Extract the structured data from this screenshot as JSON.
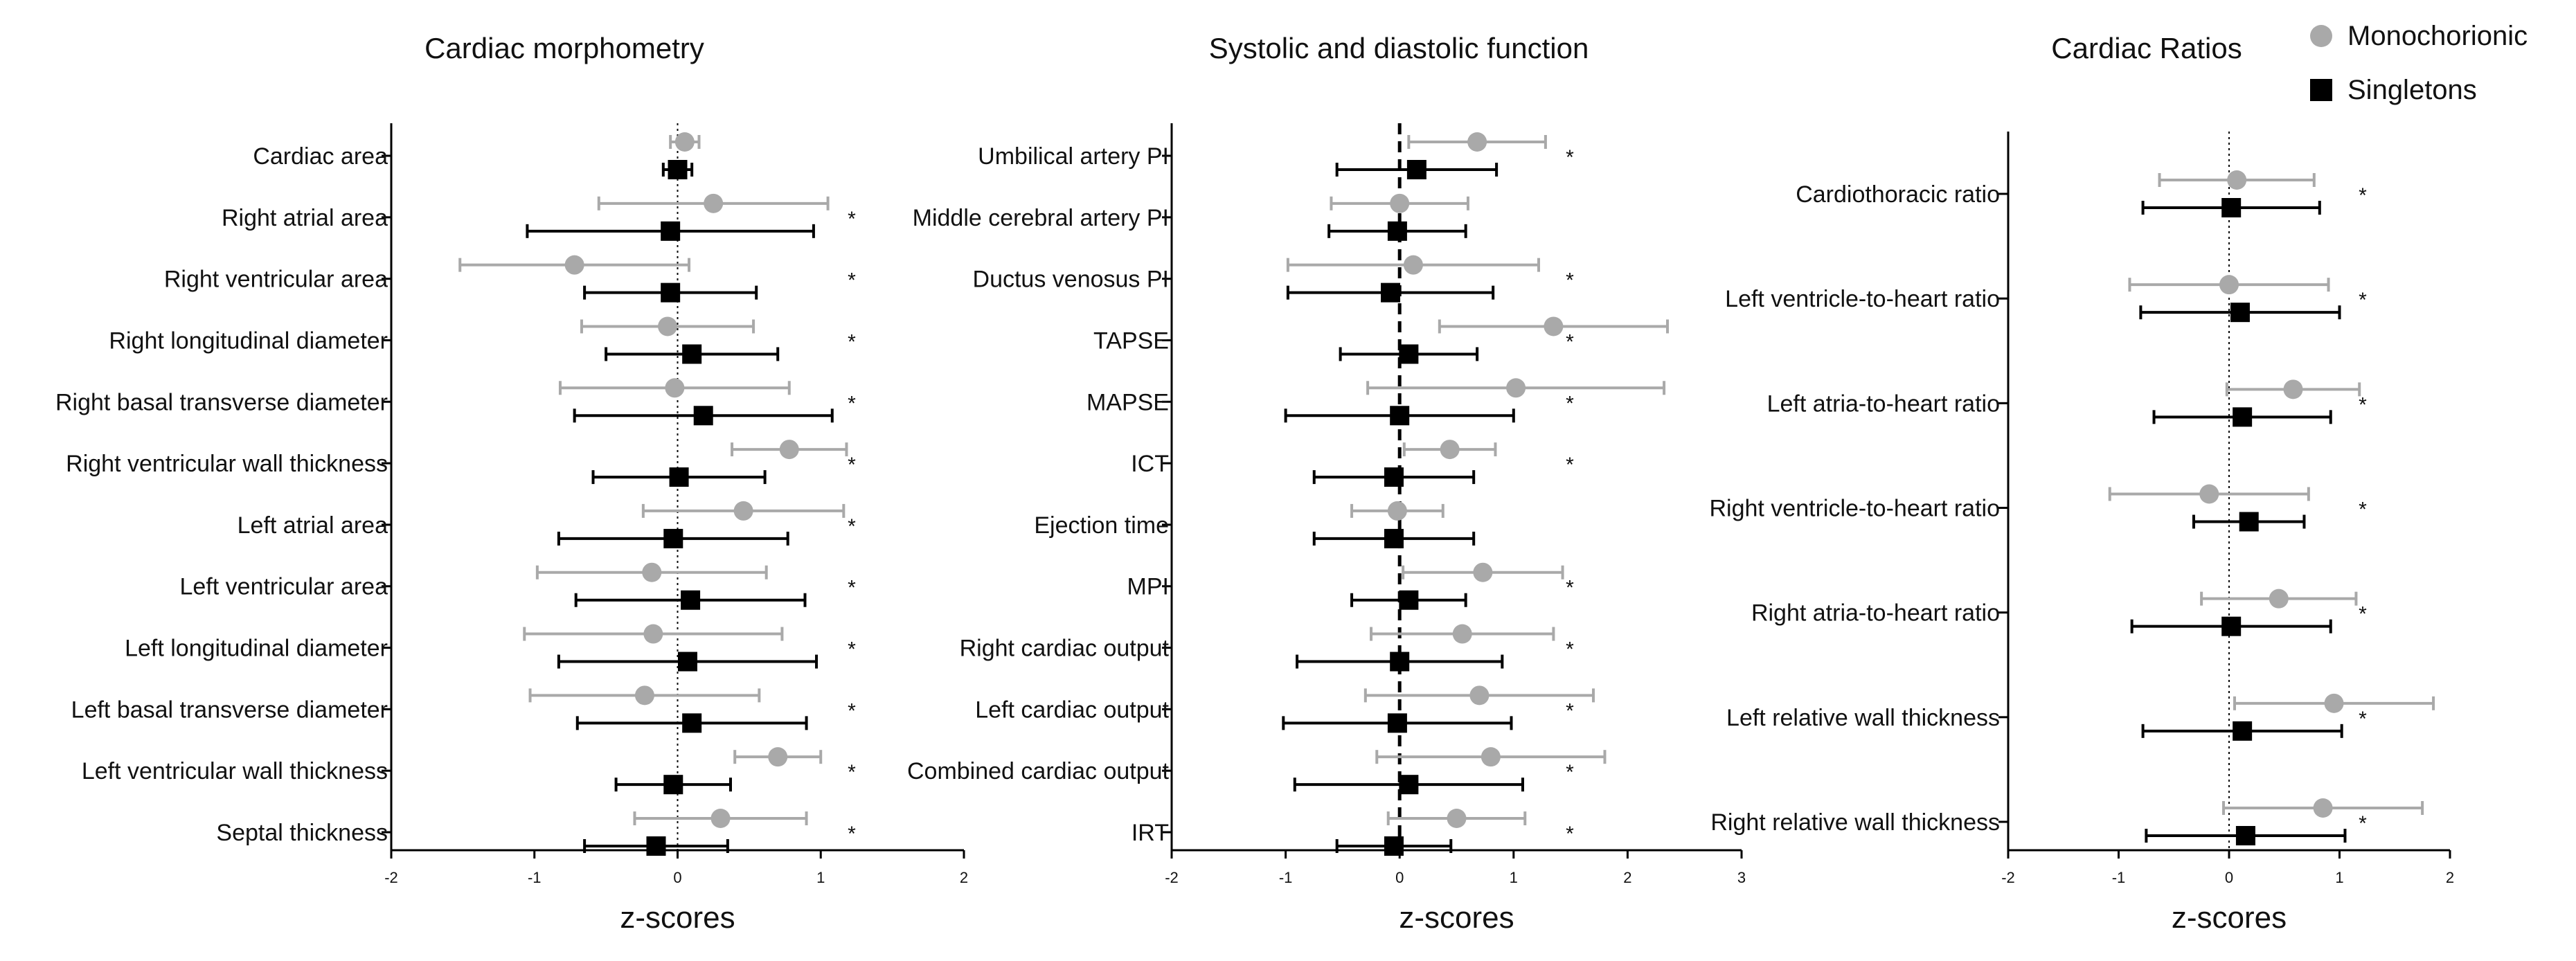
{
  "legend": {
    "position": "top-right",
    "items": [
      {
        "name": "Monochorionic",
        "marker": "circle",
        "color": "#a9a9a9"
      },
      {
        "name": "Singletons",
        "marker": "square",
        "color": "#000000"
      }
    ]
  },
  "colors": {
    "mono": "#a9a9a9",
    "single": "#000000",
    "axis": "#000000",
    "zero_line": "#000000"
  },
  "chart_data": [
    {
      "type": "forest",
      "title": "Cardiac morphometry",
      "xlabel": "z-scores",
      "xlim": [
        -2,
        2
      ],
      "xticks": [
        "-2",
        "-1",
        "0",
        "1",
        "2"
      ],
      "zero_line": "dotted",
      "categories": [
        "Cardiac area",
        "Right atrial area",
        "Right ventricular area",
        "Right longitudinal diameter",
        "Right basal transverse diameter",
        "Right ventricular wall thickness",
        "Left atrial area",
        "Left ventricular area",
        "Left longitudinal diameter",
        "Left basal transverse diameter",
        "Left ventricular wall thickness",
        "Septal thickness"
      ],
      "series": [
        {
          "name": "Monochorionic",
          "mean": [
            0.05,
            0.25,
            -0.72,
            -0.07,
            -0.02,
            0.78,
            0.46,
            -0.18,
            -0.17,
            -0.23,
            0.7,
            0.3
          ],
          "lower": [
            -0.05,
            -0.55,
            -1.52,
            -0.67,
            -0.82,
            0.38,
            -0.24,
            -0.98,
            -1.07,
            -1.03,
            0.4,
            -0.3
          ],
          "upper": [
            0.15,
            1.05,
            0.08,
            0.53,
            0.78,
            1.18,
            1.16,
            0.62,
            0.73,
            0.57,
            1.0,
            0.9
          ],
          "sig": [
            "",
            "*",
            "*",
            "*",
            "*",
            "*",
            "*",
            "*",
            "*",
            "*",
            "*",
            "*"
          ]
        },
        {
          "name": "Singletons",
          "mean": [
            0.0,
            -0.05,
            -0.05,
            0.1,
            0.18,
            0.01,
            -0.03,
            0.09,
            0.07,
            0.1,
            -0.03,
            -0.15
          ],
          "lower": [
            -0.1,
            -1.05,
            -0.65,
            -0.5,
            -0.72,
            -0.59,
            -0.83,
            -0.71,
            -0.83,
            -0.7,
            -0.43,
            -0.65
          ],
          "upper": [
            0.1,
            0.95,
            0.55,
            0.7,
            1.08,
            0.61,
            0.77,
            0.89,
            0.97,
            0.9,
            0.37,
            0.35
          ],
          "sig": [
            "",
            "",
            "",
            "",
            "",
            "",
            "",
            "",
            "",
            "",
            "",
            ""
          ]
        }
      ]
    },
    {
      "type": "forest",
      "title": "Systolic and diastolic function",
      "xlabel": "z-scores",
      "xlim": [
        -2,
        3
      ],
      "xticks": [
        "-2",
        "-1",
        "0",
        "1",
        "2",
        "3"
      ],
      "zero_line": "dashed",
      "categories": [
        "Umbilical artery PI",
        "Middle cerebral artery PI",
        "Ductus venosus PI",
        "TAPSE",
        "MAPSE",
        "ICT",
        "Ejection time",
        "MPI",
        "Right cardiac output",
        "Left cardiac output",
        "Combined cardiac output",
        "IRT"
      ],
      "series": [
        {
          "name": "Monochorionic",
          "mean": [
            0.68,
            0.0,
            0.12,
            1.35,
            1.02,
            0.44,
            -0.02,
            0.73,
            0.55,
            0.7,
            0.8,
            0.5
          ],
          "lower": [
            0.08,
            -0.6,
            -0.98,
            0.35,
            -0.28,
            0.04,
            -0.42,
            0.03,
            -0.25,
            -0.3,
            -0.2,
            -0.1
          ],
          "upper": [
            1.28,
            0.6,
            1.22,
            2.35,
            2.32,
            0.84,
            0.38,
            1.43,
            1.35,
            1.7,
            1.8,
            1.1
          ],
          "sig": [
            "*",
            "",
            "*",
            "*",
            "*",
            "*",
            "",
            "*",
            "*",
            "*",
            "*",
            "*"
          ]
        },
        {
          "name": "Singletons",
          "mean": [
            0.15,
            -0.02,
            -0.08,
            0.08,
            0.0,
            -0.05,
            -0.05,
            0.08,
            0.0,
            -0.02,
            0.08,
            -0.05
          ],
          "lower": [
            -0.55,
            -0.62,
            -0.98,
            -0.52,
            -1.0,
            -0.75,
            -0.75,
            -0.42,
            -0.9,
            -1.02,
            -0.92,
            -0.55
          ],
          "upper": [
            0.85,
            0.58,
            0.82,
            0.68,
            1.0,
            0.65,
            0.65,
            0.58,
            0.9,
            0.98,
            1.08,
            0.45
          ],
          "sig": [
            "",
            "",
            "",
            "",
            "",
            "",
            "",
            "",
            "",
            "",
            "",
            ""
          ]
        }
      ]
    },
    {
      "type": "forest",
      "title": "Cardiac Ratios",
      "xlabel": "z-scores",
      "xlim": [
        -2,
        2
      ],
      "xticks": [
        "-2",
        "-1",
        "0",
        "1",
        "2"
      ],
      "zero_line": "dotted",
      "categories": [
        "Cardiothoracic ratio",
        "Left ventricle-to-heart ratio",
        "Left atria-to-heart ratio",
        "Right ventricle-to-heart ratio",
        "Right atria-to-heart ratio",
        "Left relative wall thickness",
        "Right relative wall thickness"
      ],
      "series": [
        {
          "name": "Monochorionic",
          "mean": [
            0.07,
            0.0,
            0.58,
            -0.18,
            0.45,
            0.95,
            0.85
          ],
          "lower": [
            -0.63,
            -0.9,
            -0.02,
            -1.08,
            -0.25,
            0.05,
            -0.05
          ],
          "upper": [
            0.77,
            0.9,
            1.18,
            0.72,
            1.15,
            1.85,
            1.75
          ],
          "sig": [
            "*",
            "*",
            "*",
            "*",
            "*",
            "*",
            "*"
          ]
        },
        {
          "name": "Singletons",
          "mean": [
            0.02,
            0.1,
            0.12,
            0.18,
            0.02,
            0.12,
            0.15
          ],
          "lower": [
            -0.78,
            -0.8,
            -0.68,
            -0.32,
            -0.88,
            -0.78,
            -0.75
          ],
          "upper": [
            0.82,
            1.0,
            0.92,
            0.68,
            0.92,
            1.02,
            1.05
          ],
          "sig": [
            "",
            "",
            "",
            "",
            "",
            "",
            ""
          ]
        }
      ]
    }
  ]
}
